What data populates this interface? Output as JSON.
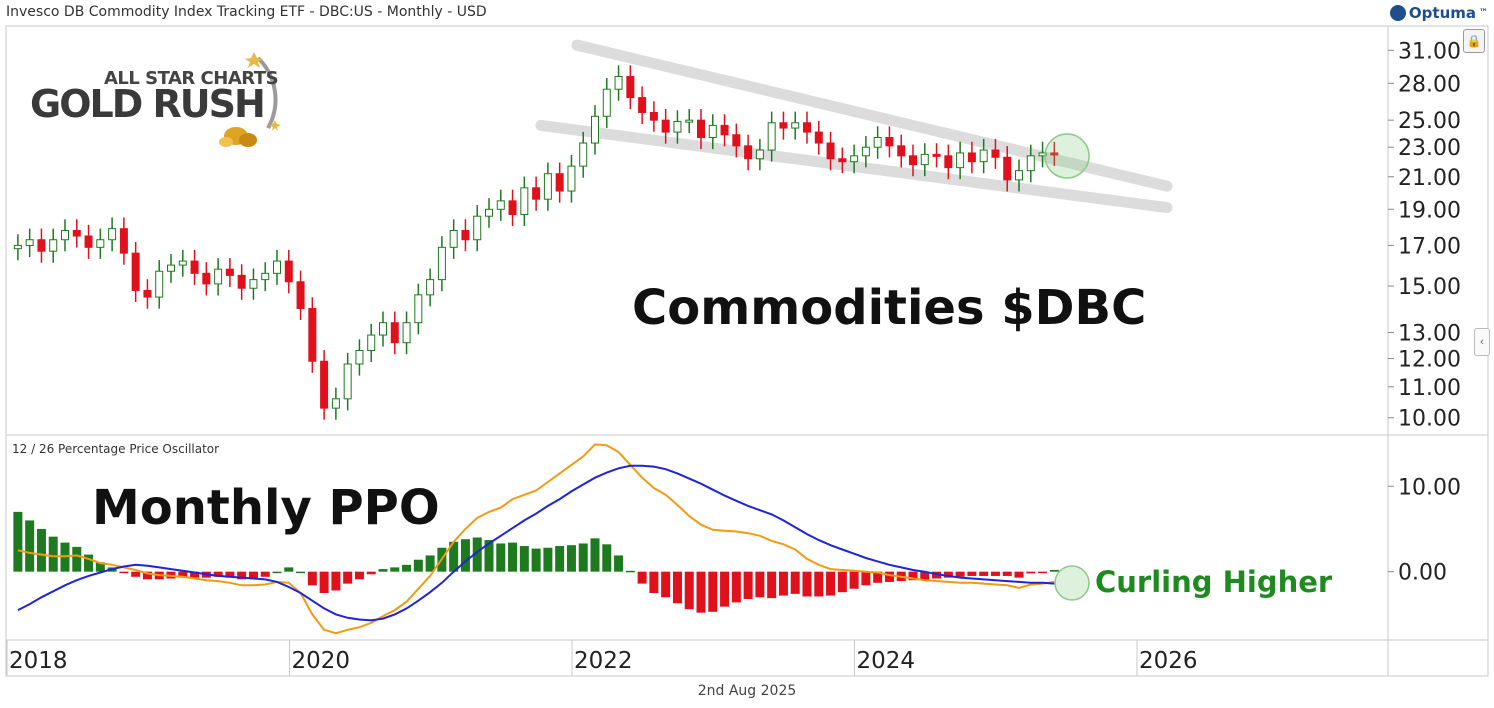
{
  "header": {
    "title": "Invesco DB Commodity Index Tracking ETF - DBC:US - Monthly - USD",
    "brand": "Optuma"
  },
  "logo": {
    "line1": "ALL STAR CHARTS",
    "line2": "GOLD RUSH"
  },
  "annotations": {
    "main_label": "Commodities $DBC",
    "ppo_heading": "Monthly PPO",
    "curling": "Curling Higher"
  },
  "colors": {
    "up": "#1e7a1e",
    "down": "#e0101c",
    "signal": "#1f25d6",
    "ppo": "#f29a12",
    "curling": "#1f8a1f"
  },
  "footer": {
    "date": "2nd Aug 2025"
  },
  "chart_data": [
    {
      "type": "candlestick",
      "title": "Invesco DB Commodity Index Tracking ETF - DBC:US - Monthly - USD",
      "scale": "log",
      "ylim": [
        9.6,
        33
      ],
      "y_ticks": [
        "31.00",
        "28.00",
        "25.00",
        "23.00",
        "21.00",
        "19.00",
        "17.00",
        "15.00",
        "13.00",
        "12.00",
        "11.00",
        "10.00"
      ],
      "x_ticks": [
        "2018",
        "2020",
        "2022",
        "2024",
        "2026"
      ],
      "closes": [
        17.0,
        17.3,
        16.7,
        17.3,
        17.8,
        17.5,
        16.9,
        17.3,
        17.9,
        16.6,
        14.8,
        14.5,
        15.7,
        16.0,
        16.2,
        15.6,
        15.1,
        15.8,
        15.5,
        14.9,
        15.3,
        15.6,
        16.2,
        15.2,
        14.0,
        11.9,
        10.3,
        10.6,
        11.8,
        12.3,
        12.9,
        13.4,
        12.6,
        13.4,
        14.6,
        15.3,
        16.9,
        17.8,
        17.3,
        18.6,
        19.0,
        19.5,
        18.7,
        20.3,
        19.6,
        21.2,
        20.1,
        21.7,
        23.3,
        25.3,
        27.5,
        28.6,
        26.8,
        25.6,
        25.0,
        24.1,
        24.9,
        25.0,
        23.7,
        24.6,
        23.9,
        23.1,
        22.2,
        22.8,
        24.8,
        24.4,
        24.8,
        24.1,
        23.3,
        22.2,
        22.0,
        22.4,
        23.0,
        23.7,
        23.1,
        22.4,
        21.8,
        22.5,
        22.4,
        21.6,
        22.6,
        22.0,
        22.8,
        22.3,
        20.8,
        21.4,
        22.4,
        22.6,
        22.5
      ],
      "ppo": [
        2.5,
        2.2,
        2.0,
        1.8,
        1.8,
        1.9,
        1.5,
        1.0,
        0.8,
        0.5,
        0.2,
        -0.2,
        -0.4,
        -0.5,
        -0.6,
        -0.8,
        -1.0,
        -1.1,
        -1.3,
        -1.6,
        -1.6,
        -1.5,
        -1.2,
        -1.3,
        -2.5,
        -5.0,
        -6.8,
        -7.2,
        -6.8,
        -6.5,
        -6.0,
        -5.2,
        -4.5,
        -3.5,
        -2.0,
        -0.5,
        1.5,
        3.5,
        5.0,
        6.3,
        7.0,
        7.5,
        8.5,
        9.0,
        9.5,
        10.5,
        11.5,
        12.5,
        13.5,
        14.9,
        14.8,
        14.0,
        12.5,
        11.0,
        9.8,
        9.0,
        7.8,
        6.5,
        5.5,
        4.9,
        4.8,
        4.7,
        4.5,
        4.2,
        3.6,
        3.2,
        2.6,
        1.5,
        0.8,
        0.3,
        0.2,
        0.1,
        0.0,
        -0.1,
        -0.4,
        -0.6,
        -0.8,
        -1.0,
        -1.1,
        -1.2,
        -1.3,
        -1.3,
        -1.4,
        -1.5,
        -1.6,
        -1.9,
        -1.5,
        -1.4,
        -1.2
      ],
      "signal": [
        -4.5,
        -3.8,
        -3.0,
        -2.3,
        -1.6,
        -1.0,
        -0.5,
        -0.1,
        0.3,
        0.6,
        0.8,
        0.7,
        0.5,
        0.3,
        0.1,
        -0.1,
        -0.3,
        -0.5,
        -0.6,
        -0.7,
        -0.8,
        -0.9,
        -1.2,
        -1.8,
        -2.5,
        -3.4,
        -4.3,
        -5.0,
        -5.4,
        -5.6,
        -5.7,
        -5.5,
        -5.0,
        -4.3,
        -3.4,
        -2.4,
        -1.3,
        0.0,
        1.2,
        2.3,
        3.3,
        4.2,
        5.1,
        6.0,
        6.8,
        7.7,
        8.5,
        9.4,
        10.2,
        11.0,
        11.6,
        12.1,
        12.4,
        12.4,
        12.3,
        12.0,
        11.5,
        10.9,
        10.3,
        9.6,
        8.9,
        8.3,
        7.7,
        7.2,
        6.7,
        6.0,
        5.2,
        4.4,
        3.7,
        3.1,
        2.6,
        2.1,
        1.6,
        1.2,
        0.8,
        0.5,
        0.2,
        0.0,
        -0.3,
        -0.5,
        -0.7,
        -0.8,
        -0.9,
        -1.0,
        -1.1,
        -1.2,
        -1.3,
        -1.3,
        -1.4
      ]
    },
    {
      "type": "bar",
      "title": "12 / 26 Percentage Price Oscillator",
      "ylim": [
        -8,
        16
      ],
      "y_ticks": [
        "10.00",
        "0.00"
      ],
      "note": "histogram = ppo - signal"
    }
  ]
}
